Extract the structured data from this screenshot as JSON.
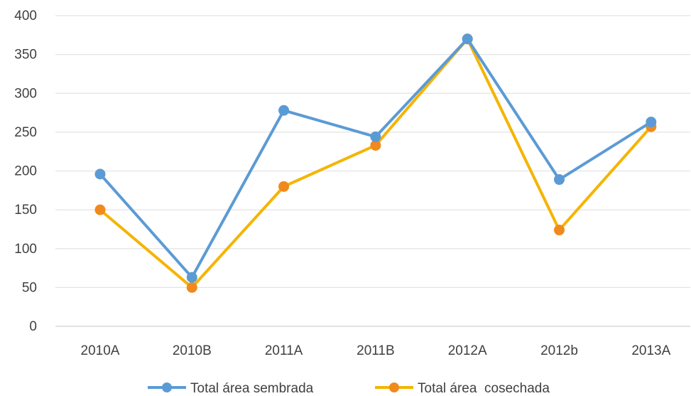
{
  "chart_data": {
    "type": "line",
    "title": "",
    "xlabel": "",
    "ylabel": "",
    "categories": [
      "2010A",
      "2010B",
      "2011A",
      "2011B",
      "2012A",
      "2012b",
      "2013A"
    ],
    "ylim": [
      0,
      400
    ],
    "yticks": [
      0,
      50,
      100,
      150,
      200,
      250,
      300,
      350,
      400
    ],
    "grid": true,
    "legend_position": "bottom",
    "series": [
      {
        "name": "Total área sembrada",
        "color": "#5B9BD5",
        "values": [
          196,
          63,
          278,
          244,
          370,
          189,
          263
        ]
      },
      {
        "name": "Total área  cosechada",
        "color": "#F5B400",
        "marker_color": "#F08A1C",
        "values": [
          150,
          50,
          180,
          233,
          370,
          124,
          257
        ]
      }
    ]
  }
}
